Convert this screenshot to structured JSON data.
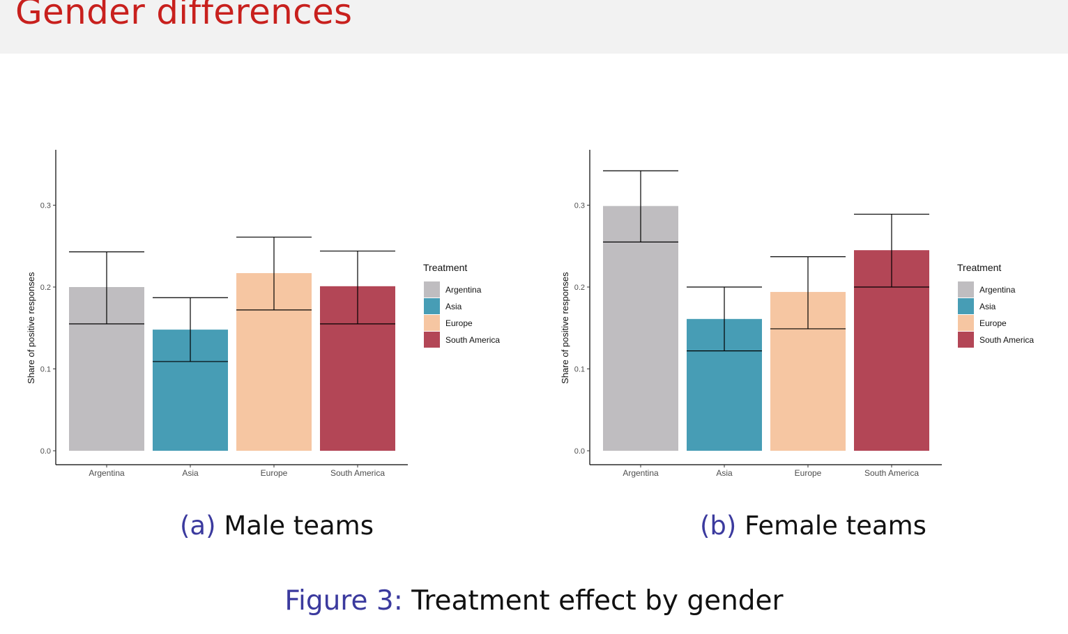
{
  "slide": {
    "title": "Gender differences",
    "figure_label": "Figure 3:",
    "figure_caption": "Treatment effect by gender"
  },
  "colors": {
    "title": "#c8201d",
    "caption_label": "#3b3a9e",
    "Argentina": "#bfbdc0",
    "Asia": "#479db5",
    "Europe": "#f6c6a2",
    "South America": "#b34656"
  },
  "chart_data": [
    {
      "type": "bar",
      "panel_label": "(a)",
      "panel_title": "Male teams",
      "categories": [
        "Argentina",
        "Asia",
        "Europe",
        "South America"
      ],
      "values": [
        0.2,
        0.148,
        0.217,
        0.201
      ],
      "error_low": [
        0.155,
        0.109,
        0.172,
        0.155
      ],
      "error_high": [
        0.243,
        0.187,
        0.261,
        0.244
      ],
      "xlabel": "",
      "ylabel": "Share of positive responses",
      "ylim": [
        0,
        0.3
      ],
      "yticks": [
        "0.0",
        "0.1",
        "0.2",
        "0.3"
      ],
      "legend": {
        "title": "Treatment",
        "entries": [
          "Argentina",
          "Asia",
          "Europe",
          "South America"
        ],
        "position": "right"
      },
      "grid": false
    },
    {
      "type": "bar",
      "panel_label": "(b)",
      "panel_title": "Female teams",
      "categories": [
        "Argentina",
        "Asia",
        "Europe",
        "South America"
      ],
      "values": [
        0.299,
        0.161,
        0.194,
        0.245
      ],
      "error_low": [
        0.255,
        0.122,
        0.149,
        0.2
      ],
      "error_high": [
        0.342,
        0.2,
        0.237,
        0.289
      ],
      "xlabel": "",
      "ylabel": "Share of positive responses",
      "ylim": [
        0,
        0.3
      ],
      "yticks": [
        "0.0",
        "0.1",
        "0.2",
        "0.3"
      ],
      "legend": {
        "title": "Treatment",
        "entries": [
          "Argentina",
          "Asia",
          "Europe",
          "South America"
        ],
        "position": "right"
      },
      "grid": false
    }
  ]
}
